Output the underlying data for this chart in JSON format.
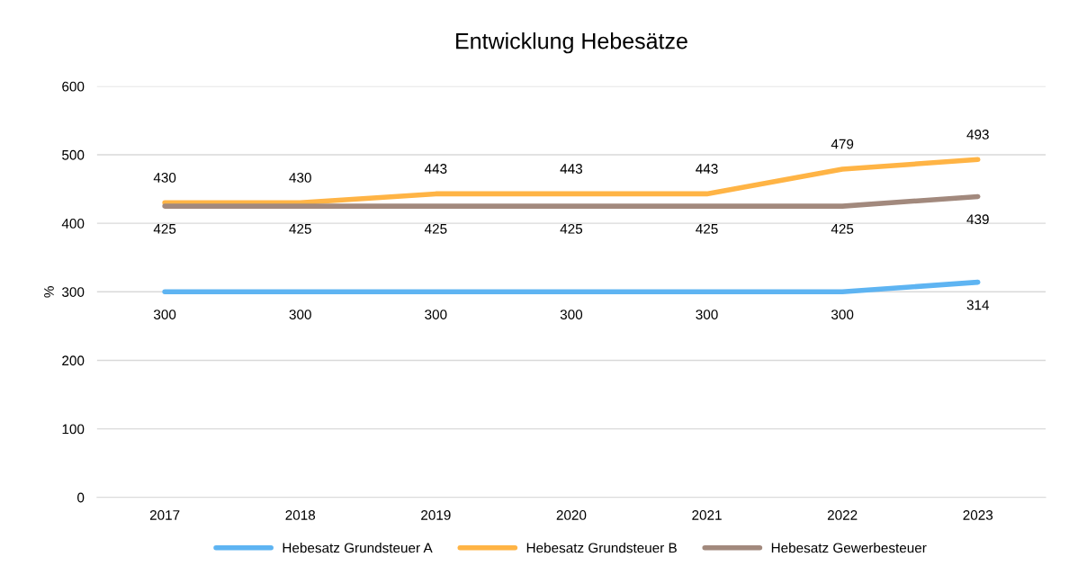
{
  "chart_data": {
    "type": "line",
    "title": "Entwicklung Hebesätze",
    "ylabel": "%",
    "categories": [
      "2017",
      "2018",
      "2019",
      "2020",
      "2021",
      "2022",
      "2023"
    ],
    "series": [
      {
        "name": "Hebesatz Grundsteuer A",
        "color": "#5eb4f2",
        "values": [
          300,
          300,
          300,
          300,
          300,
          300,
          314
        ]
      },
      {
        "name": "Hebesatz Grundsteuer B",
        "color": "#ffb445",
        "values": [
          430,
          430,
          443,
          443,
          443,
          479,
          493
        ]
      },
      {
        "name": "Hebesatz Gewerbesteuer",
        "color": "#a2897d",
        "values": [
          425,
          425,
          425,
          425,
          425,
          425,
          439
        ]
      }
    ],
    "ylim": [
      0,
      600
    ],
    "yticks": [
      0,
      100,
      200,
      300,
      400,
      500,
      600
    ],
    "grid": "y",
    "legend": "bottom",
    "data_labels": true,
    "marker": "none",
    "line_style": "solid"
  }
}
